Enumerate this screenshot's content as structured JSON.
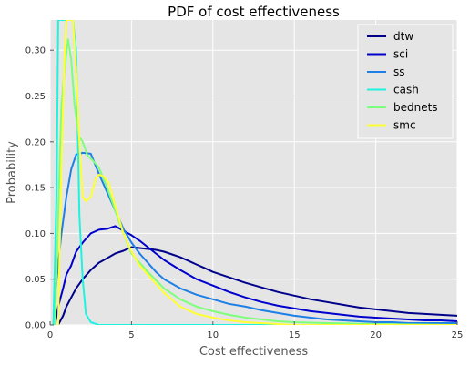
{
  "chart_data": {
    "type": "line",
    "title": "PDF of cost effectiveness",
    "xlabel": "Cost effectiveness",
    "ylabel": "Probability",
    "xlim": [
      0,
      25
    ],
    "ylim": [
      0,
      0.333
    ],
    "xticks": [
      0,
      5,
      10,
      15,
      20,
      25
    ],
    "xtick_labels": [
      "0",
      "5",
      "10",
      "15",
      "20",
      "25"
    ],
    "yticks": [
      0.0,
      0.05,
      0.1,
      0.15,
      0.2,
      0.25,
      0.3
    ],
    "ytick_labels": [
      "0.00",
      "0.05",
      "0.10",
      "0.15",
      "0.20",
      "0.25",
      "0.30"
    ],
    "grid": true,
    "background": "#e5e5e5",
    "legend_position": "top-right",
    "series": [
      {
        "name": "dtw",
        "color": "#00008b",
        "x": [
          0.5,
          0.8,
          1.0,
          1.3,
          1.6,
          2.0,
          2.5,
          3.0,
          3.5,
          4.0,
          4.5,
          5.0,
          5.5,
          6.0,
          6.5,
          7.0,
          7.5,
          8.0,
          8.5,
          9.0,
          9.5,
          10.0,
          11.0,
          12.0,
          13.0,
          14.0,
          15.0,
          16.0,
          17.0,
          18.0,
          19.0,
          20.0,
          21.0,
          22.0,
          23.0,
          24.0,
          25.0
        ],
        "y": [
          0.0,
          0.01,
          0.02,
          0.03,
          0.04,
          0.05,
          0.06,
          0.068,
          0.073,
          0.078,
          0.081,
          0.085,
          0.084,
          0.083,
          0.082,
          0.08,
          0.077,
          0.074,
          0.07,
          0.066,
          0.062,
          0.058,
          0.052,
          0.046,
          0.041,
          0.036,
          0.032,
          0.028,
          0.025,
          0.022,
          0.019,
          0.017,
          0.015,
          0.013,
          0.012,
          0.011,
          0.01
        ]
      },
      {
        "name": "sci",
        "color": "#0000cd",
        "x": [
          0.3,
          0.5,
          0.8,
          1.0,
          1.3,
          1.6,
          2.0,
          2.5,
          3.0,
          3.5,
          4.0,
          4.5,
          5.0,
          5.5,
          6.0,
          6.5,
          7.0,
          8.0,
          9.0,
          10.0,
          11.0,
          12.0,
          13.0,
          14.0,
          15.0,
          16.0,
          17.0,
          18.0,
          19.0,
          20.0,
          21.0,
          22.0,
          23.0,
          24.0,
          25.0
        ],
        "y": [
          0.0,
          0.02,
          0.04,
          0.055,
          0.065,
          0.08,
          0.09,
          0.1,
          0.104,
          0.105,
          0.108,
          0.103,
          0.098,
          0.092,
          0.085,
          0.078,
          0.071,
          0.06,
          0.05,
          0.043,
          0.036,
          0.03,
          0.025,
          0.021,
          0.018,
          0.015,
          0.013,
          0.011,
          0.009,
          0.008,
          0.007,
          0.006,
          0.005,
          0.005,
          0.004
        ]
      },
      {
        "name": "ss",
        "color": "#1e7fe6",
        "x": [
          0.2,
          0.4,
          0.7,
          1.0,
          1.3,
          1.6,
          2.0,
          2.5,
          3.0,
          3.5,
          4.0,
          4.5,
          5.0,
          5.5,
          6.0,
          6.5,
          7.0,
          8.0,
          9.0,
          10.0,
          11.0,
          12.0,
          13.0,
          14.0,
          15.0,
          16.0,
          17.0,
          18.0,
          19.0,
          20.0,
          21.0,
          22.0,
          23.0,
          24.0,
          25.0
        ],
        "y": [
          0.0,
          0.05,
          0.1,
          0.14,
          0.17,
          0.186,
          0.188,
          0.187,
          0.165,
          0.145,
          0.125,
          0.105,
          0.09,
          0.078,
          0.068,
          0.058,
          0.05,
          0.04,
          0.033,
          0.028,
          0.023,
          0.02,
          0.016,
          0.013,
          0.01,
          0.008,
          0.006,
          0.005,
          0.004,
          0.003,
          0.003,
          0.002,
          0.002,
          0.002,
          0.002
        ]
      },
      {
        "name": "cash",
        "color": "#1ff3e0",
        "x": [
          0.2,
          0.4,
          0.5,
          0.6,
          0.8,
          1.0,
          1.2,
          1.4,
          1.6,
          1.8,
          2.0,
          2.2,
          2.5,
          3.0,
          4.0,
          5.0,
          10.0,
          25.0
        ],
        "y": [
          0.0,
          0.15,
          0.333,
          0.333,
          0.333,
          0.333,
          0.333,
          0.333,
          0.3,
          0.12,
          0.05,
          0.012,
          0.003,
          0.0,
          0.0,
          0.0,
          0.0,
          0.0
        ]
      },
      {
        "name": "bednets",
        "color": "#7dff7a",
        "x": [
          0.3,
          0.5,
          0.7,
          0.9,
          1.1,
          1.3,
          1.5,
          1.8,
          2.0,
          2.3,
          2.6,
          3.0,
          3.5,
          4.0,
          4.5,
          5.0,
          5.5,
          6.0,
          7.0,
          8.0,
          9.0,
          10.0,
          11.0,
          12.0,
          13.0,
          14.0,
          15.0,
          17.0,
          20.0,
          25.0
        ],
        "y": [
          0.0,
          0.12,
          0.24,
          0.28,
          0.312,
          0.29,
          0.24,
          0.205,
          0.2,
          0.185,
          0.18,
          0.172,
          0.15,
          0.125,
          0.1,
          0.078,
          0.068,
          0.058,
          0.04,
          0.028,
          0.02,
          0.015,
          0.011,
          0.008,
          0.006,
          0.004,
          0.003,
          0.002,
          0.001,
          0.0
        ]
      },
      {
        "name": "smc",
        "color": "#ffff33",
        "x": [
          0.5,
          0.7,
          0.9,
          1.0,
          1.2,
          1.4,
          1.6,
          1.8,
          2.0,
          2.2,
          2.5,
          2.8,
          3.0,
          3.3,
          3.6,
          4.0,
          4.5,
          5.0,
          5.5,
          6.0,
          7.0,
          8.0,
          9.0,
          10.0,
          11.0,
          12.0,
          13.0,
          14.0,
          15.0,
          17.0,
          20.0,
          25.0
        ],
        "y": [
          0.0,
          0.18,
          0.3,
          0.333,
          0.333,
          0.333,
          0.28,
          0.2,
          0.14,
          0.135,
          0.14,
          0.16,
          0.164,
          0.162,
          0.155,
          0.13,
          0.1,
          0.08,
          0.065,
          0.055,
          0.035,
          0.02,
          0.012,
          0.008,
          0.005,
          0.003,
          0.002,
          0.001,
          0.0,
          0.0,
          0.0,
          0.0
        ]
      }
    ]
  }
}
